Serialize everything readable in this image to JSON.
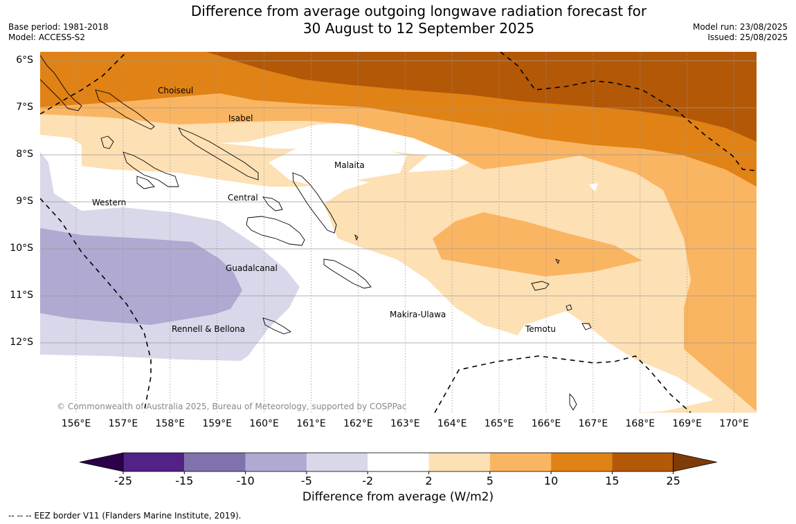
{
  "header": {
    "title_line1": "Difference from average outgoing longwave radiation forecast for",
    "title_line2": "30 August to 12 September 2025",
    "base_period": "Base period: 1981-2018",
    "model": "Model: ACCESS-S2",
    "model_run": "Model run: 23/08/2025",
    "issued": "Issued: 25/08/2025"
  },
  "map": {
    "lat_labels": [
      "6°S",
      "7°S",
      "8°S",
      "9°S",
      "10°S",
      "11°S",
      "12°S"
    ],
    "lon_labels": [
      "156°E",
      "157°E",
      "158°E",
      "159°E",
      "160°E",
      "161°E",
      "162°E",
      "163°E",
      "164°E",
      "165°E",
      "166°E",
      "167°E",
      "168°E",
      "169°E",
      "170°E"
    ],
    "province_labels": {
      "choiseul": "Choiseul",
      "isabel": "Isabel",
      "malaita": "Malaita",
      "western": "Western",
      "central": "Central",
      "guadalcanal": "Guadalcanal",
      "rennell_bellona": "Rennell & Bellona",
      "makira_ulawa": "Makira-Ulawa",
      "temotu": "Temotu"
    },
    "copyright": "© Commonwealth of Australia 2025, Bureau of Meteorology, supported by COSPPac"
  },
  "colorbar": {
    "ticks": [
      "-25",
      "-15",
      "-10",
      "-5",
      "-2",
      "2",
      "5",
      "10",
      "15",
      "25"
    ],
    "colors": [
      "#522287",
      "#8072ac",
      "#b0a9d1",
      "#d8d8ea",
      "#ffffff",
      "#fde0b4",
      "#fab562",
      "#e08215",
      "#b35807"
    ],
    "extend_low_color": "#2d004b",
    "extend_high_color": "#7f3b08",
    "label": "Difference from average (W/m2)"
  },
  "footnote": "--  --  -- EEZ border V11 (Flanders Marine Institute, 2019)."
}
